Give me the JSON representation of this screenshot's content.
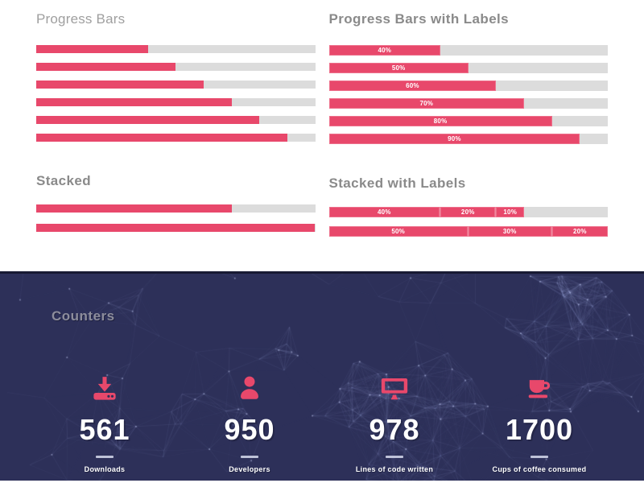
{
  "palette": {
    "pink": "#e8486b",
    "track_gray": "#dcdcdc",
    "navy_background": "#2d3059",
    "navy_top_border": "#181a33",
    "heading_gray": "#8a8a8a",
    "plexus_line": "#9aa4d8",
    "white": "#ffffff"
  },
  "progress_plain": {
    "title": "Progress Bars",
    "values": [
      40,
      50,
      60,
      70,
      80,
      90
    ]
  },
  "progress_labeled": {
    "title": "Progress Bars with Labels",
    "bars": [
      {
        "value": 40,
        "label": "40%"
      },
      {
        "value": 50,
        "label": "50%"
      },
      {
        "value": 60,
        "label": "60%"
      },
      {
        "value": 70,
        "label": "70%"
      },
      {
        "value": 80,
        "label": "80%"
      },
      {
        "value": 90,
        "label": "90%"
      }
    ]
  },
  "stacked_plain": {
    "title": "Stacked",
    "bars": [
      {
        "segments": [
          40,
          20,
          10
        ]
      },
      {
        "segments": [
          50,
          30,
          20
        ]
      }
    ]
  },
  "stacked_labeled": {
    "title": "Stacked with Labels",
    "bars": [
      {
        "segments": [
          {
            "value": 40,
            "label": "40%"
          },
          {
            "value": 20,
            "label": "20%"
          },
          {
            "value": 10,
            "label": "10%"
          }
        ]
      },
      {
        "segments": [
          {
            "value": 50,
            "label": "50%"
          },
          {
            "value": 30,
            "label": "30%"
          },
          {
            "value": 20,
            "label": "20%"
          }
        ]
      }
    ]
  },
  "counters": {
    "title": "Counters",
    "items": [
      {
        "icon": "download-icon",
        "value": "561",
        "label": "Downloads"
      },
      {
        "icon": "user-icon",
        "value": "950",
        "label": "Developers"
      },
      {
        "icon": "desktop-icon",
        "value": "978",
        "label": "Lines of code written"
      },
      {
        "icon": "coffee-icon",
        "value": "1700",
        "label": "Cups of coffee consumed"
      }
    ]
  }
}
